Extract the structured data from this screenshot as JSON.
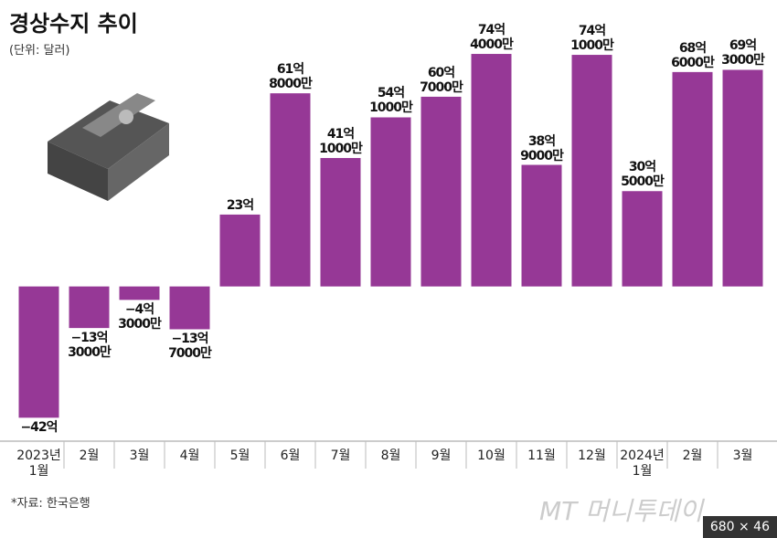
{
  "chart_data": {
    "type": "bar",
    "title": "경상수지 추이",
    "subtitle": "(단위: 달러)",
    "source": "*자료: 한국은행",
    "watermark": "MT 머니투데이",
    "overlay_badge": "680 × 46",
    "categories": [
      "2023년\n1월",
      "2월",
      "3월",
      "4월",
      "5월",
      "6월",
      "7월",
      "8월",
      "9월",
      "10월",
      "11월",
      "12월",
      "2024년\n1월",
      "2월",
      "3월"
    ],
    "values": [
      -42,
      -13.3,
      -4.3,
      -13.7,
      23,
      61.8,
      41.1,
      54.1,
      60.7,
      74.4,
      38.9,
      74.1,
      30.5,
      68.6,
      69.3
    ],
    "value_labels": [
      "−42억",
      "−13억\n3000만",
      "−4억\n3000만",
      "−13억\n7000만",
      "23억",
      "61억\n8000만",
      "41억\n1000만",
      "54억\n1000만",
      "60억\n7000만",
      "74억\n4000만",
      "38억\n9000만",
      "74억\n1000만",
      "30억\n5000만",
      "68억\n6000만",
      "69억\n3000만"
    ],
    "color": "#963896",
    "ylim": [
      -49.5,
      78.5
    ]
  }
}
